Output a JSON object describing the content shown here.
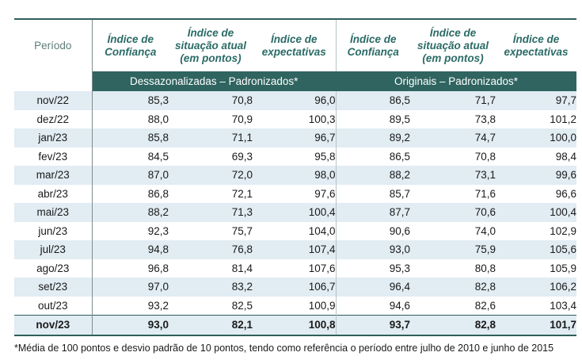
{
  "headers": {
    "period": "Período",
    "cols": [
      [
        "Índice de",
        "Confiança"
      ],
      [
        "Índice de",
        "situação atual",
        "(em pontos)"
      ],
      [
        "Índice de",
        "expectativas"
      ],
      [
        "Índice de",
        "Confiança"
      ],
      [
        "Índice de",
        "situação atual",
        "(em pontos)"
      ],
      [
        "Índice de",
        "expectativas"
      ]
    ]
  },
  "groups": {
    "left": "Dessazonalizadas – Padronizados*",
    "right": "Originais – Padronizados*"
  },
  "rows": [
    {
      "p": "nov/22",
      "v": [
        "85,3",
        "70,8",
        "96,0",
        "86,5",
        "71,7",
        "97,7"
      ]
    },
    {
      "p": "dez/22",
      "v": [
        "88,0",
        "70,9",
        "100,3",
        "89,5",
        "73,8",
        "101,2"
      ]
    },
    {
      "p": "jan/23",
      "v": [
        "85,8",
        "71,1",
        "96,7",
        "89,2",
        "74,7",
        "100,0"
      ]
    },
    {
      "p": "fev/23",
      "v": [
        "84,5",
        "69,3",
        "95,8",
        "86,5",
        "70,8",
        "98,4"
      ]
    },
    {
      "p": "mar/23",
      "v": [
        "87,0",
        "72,0",
        "98,0",
        "88,2",
        "73,1",
        "99,6"
      ]
    },
    {
      "p": "abr/23",
      "v": [
        "86,8",
        "72,1",
        "97,6",
        "85,7",
        "71,6",
        "96,6"
      ]
    },
    {
      "p": "mai/23",
      "v": [
        "88,2",
        "71,3",
        "100,4",
        "87,7",
        "70,6",
        "100,4"
      ]
    },
    {
      "p": "jun/23",
      "v": [
        "92,3",
        "75,7",
        "104,0",
        "90,6",
        "74,0",
        "102,9"
      ]
    },
    {
      "p": "jul/23",
      "v": [
        "94,8",
        "76,8",
        "107,4",
        "93,0",
        "75,9",
        "105,6"
      ]
    },
    {
      "p": "ago/23",
      "v": [
        "96,8",
        "81,4",
        "107,6",
        "95,3",
        "80,8",
        "105,9"
      ]
    },
    {
      "p": "set/23",
      "v": [
        "97,0",
        "83,2",
        "106,7",
        "96,4",
        "82,8",
        "106,2"
      ]
    },
    {
      "p": "out/23",
      "v": [
        "93,2",
        "82,5",
        "100,9",
        "94,6",
        "82,6",
        "103,4"
      ]
    },
    {
      "p": "nov/23",
      "v": [
        "93,0",
        "82,1",
        "100,8",
        "93,7",
        "82,8",
        "101,7"
      ]
    }
  ],
  "colors": {
    "band": "#2f6460",
    "header_text": "#2b6b66",
    "alt_row": "#e1ecf3"
  },
  "footnote": "*Média de 100 pontos e desvio padrão de 10 pontos, tendo como referência o período entre julho de 2010 e junho de 2015"
}
